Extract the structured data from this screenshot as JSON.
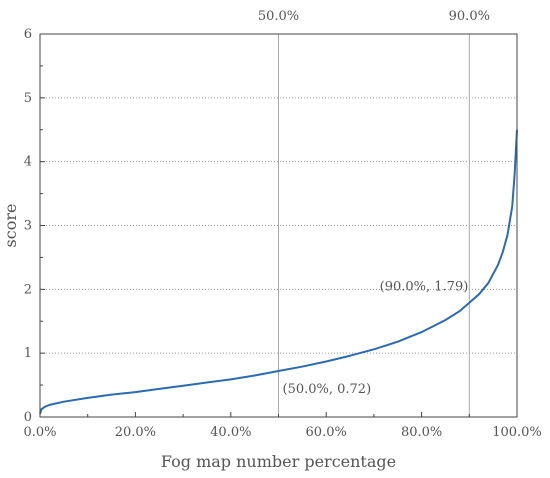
{
  "chart_data": {
    "type": "line",
    "xlabel": "Fog map number percentage",
    "ylabel": "score",
    "xlim": [
      0,
      100
    ],
    "ylim": [
      0,
      6
    ],
    "x_ticks": [
      {
        "value": 0,
        "label": "0.0%"
      },
      {
        "value": 20,
        "label": "20.0%"
      },
      {
        "value": 40,
        "label": "40.0%"
      },
      {
        "value": 60,
        "label": "60.0%"
      },
      {
        "value": 80,
        "label": "80.0%"
      },
      {
        "value": 100,
        "label": "100.0%"
      }
    ],
    "y_ticks": [
      {
        "value": 0,
        "label": "0"
      },
      {
        "value": 1,
        "label": "1"
      },
      {
        "value": 2,
        "label": "2"
      },
      {
        "value": 3,
        "label": "3"
      },
      {
        "value": 4,
        "label": "4"
      },
      {
        "value": 5,
        "label": "5"
      },
      {
        "value": 6,
        "label": "6"
      }
    ],
    "grid": "horizontal dotted",
    "line_color": "#2b6cb0",
    "series": [
      {
        "x": [
          0,
          0.3,
          1,
          2,
          5,
          10,
          15,
          20,
          25,
          30,
          35,
          40,
          45,
          50,
          55,
          60,
          65,
          70,
          75,
          80,
          85,
          88,
          90,
          92,
          94,
          96,
          97,
          98,
          99,
          99.5,
          100
        ],
        "values": [
          0.05,
          0.12,
          0.16,
          0.19,
          0.24,
          0.3,
          0.35,
          0.39,
          0.44,
          0.49,
          0.54,
          0.59,
          0.65,
          0.72,
          0.79,
          0.87,
          0.96,
          1.06,
          1.18,
          1.33,
          1.52,
          1.66,
          1.79,
          1.92,
          2.1,
          2.38,
          2.58,
          2.85,
          3.3,
          3.8,
          4.5
        ]
      }
    ],
    "vlines": [
      {
        "x": 50,
        "label": "50.0%"
      },
      {
        "x": 90,
        "label": "90.0%"
      }
    ],
    "annotations": [
      {
        "x": 50,
        "y": 0.72,
        "text": "(50.0%, 0.72)"
      },
      {
        "x": 90,
        "y": 1.79,
        "text": "(90.0%, 1.79)"
      }
    ]
  }
}
